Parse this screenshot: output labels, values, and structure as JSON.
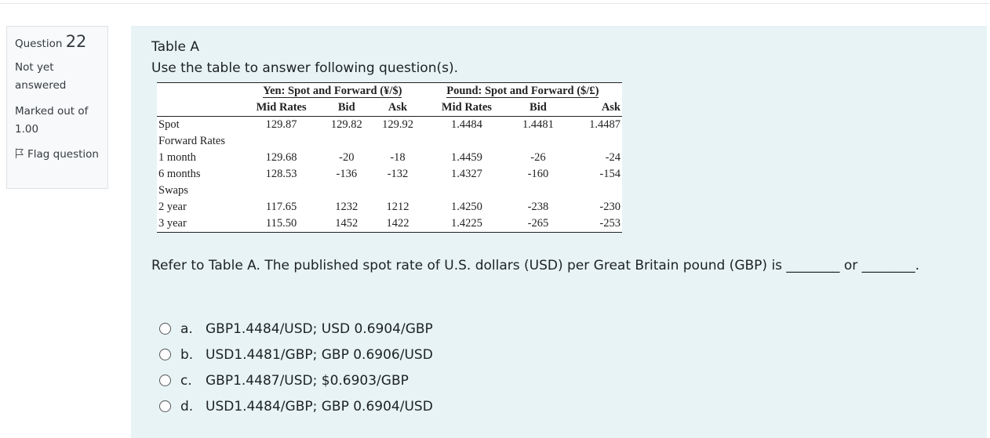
{
  "sidebar": {
    "question_label": "Question",
    "number": "22",
    "status": "Not yet answered",
    "marks": "Marked out of 1.00",
    "flag": "Flag question"
  },
  "content": {
    "title": "Table A",
    "instruction": "Use the table to answer following question(s)."
  },
  "table": {
    "groups": [
      "Yen: Spot and Forward (¥/$)",
      "Pound: Spot and Forward ($/£)"
    ],
    "columns": [
      "Mid Rates",
      "Bid",
      "Ask",
      "Mid Rates",
      "Bid",
      "Ask"
    ],
    "rows": [
      {
        "label": "Spot",
        "cells": [
          "129.87",
          "129.82",
          "129.92",
          "1.4484",
          "1.4481",
          "1.4487"
        ]
      },
      {
        "label": "Forward Rates"
      },
      {
        "label": "1 month",
        "cells": [
          "129.68",
          "-20",
          "-18",
          "1.4459",
          "-26",
          "-24"
        ]
      },
      {
        "label": "6 months",
        "cells": [
          "128.53",
          "-136",
          "-132",
          "1.4327",
          "-160",
          "-154"
        ]
      },
      {
        "label": "Swaps"
      },
      {
        "label": "2 year",
        "cells": [
          "117.65",
          "1232",
          "1212",
          "1.4250",
          "-238",
          "-230"
        ]
      },
      {
        "label": "3 year",
        "cells": [
          "115.50",
          "1452",
          "1422",
          "1.4225",
          "-265",
          "-253"
        ]
      }
    ]
  },
  "question": {
    "text": "Refer to Table A. The published spot rate of U.S. dollars (USD) per Great Britain pound (GBP) is ________ or ________."
  },
  "options": [
    {
      "letter": "a.",
      "text": "GBP1.4484/USD; USD 0.6904/GBP"
    },
    {
      "letter": "b.",
      "text": "USD1.4481/GBP; GBP 0.6906/USD"
    },
    {
      "letter": "c.",
      "text": "GBP1.4487/USD; $0.6903/GBP"
    },
    {
      "letter": "d.",
      "text": "USD1.4484/GBP; GBP 0.6904/USD"
    }
  ]
}
